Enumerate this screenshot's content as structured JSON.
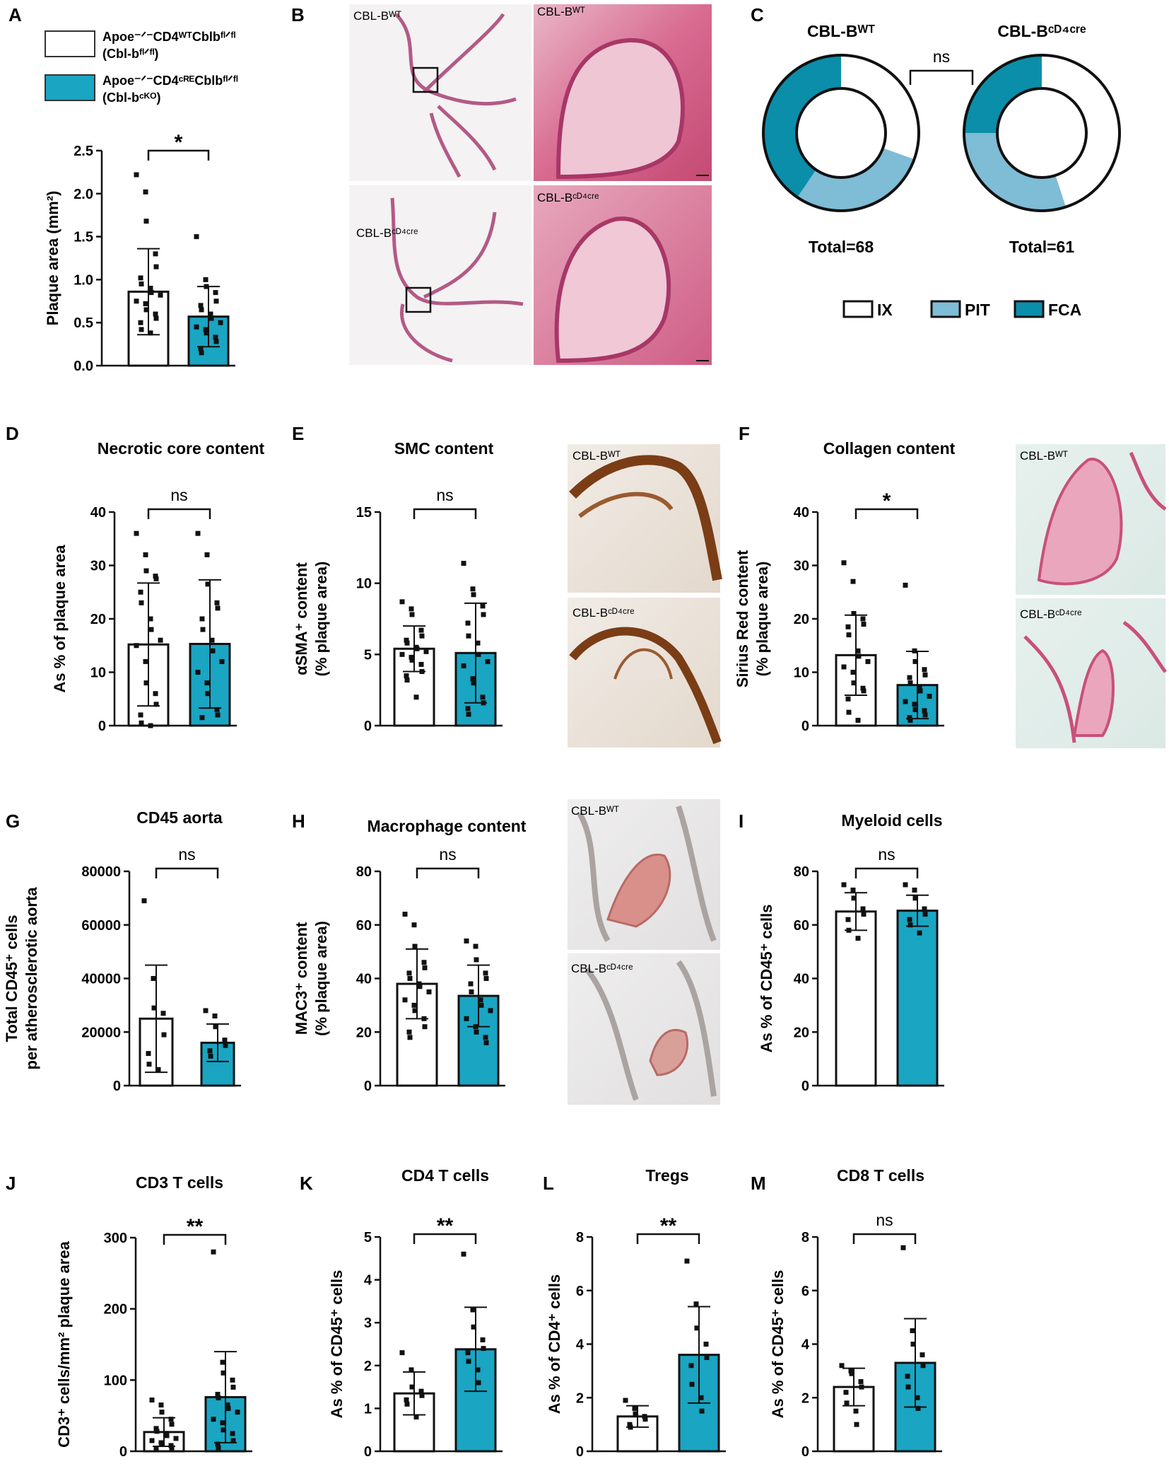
{
  "colors": {
    "wt_fill": "#ffffff",
    "ko_fill": "#1aa5c3",
    "pit": "#7fbcd5",
    "fca": "#0b8eaa",
    "ix": "#ffffff",
    "ink": "#111111"
  },
  "legend": {
    "wt_line1": "Apoe⁻ᐟ⁻CD4ᵂᵀCblbᶠˡᐟᶠˡ",
    "wt_line2": "(Cbl-bᶠˡᐟᶠˡ)",
    "ko_line1": "Apoe⁻ᐟ⁻CD4ᶜᴿᴱCblbᶠˡᐟᶠˡ",
    "ko_line2": "(Cbl-bᶜᴷᴼ)"
  },
  "images": {
    "b_wt": "CBL-Bᵂᵀ",
    "b_cre": "CBL-Bᶜᴰ⁴ᶜʳᵉ"
  },
  "chart_data": [
    {
      "id": "A",
      "type": "bar",
      "panel_label": "A",
      "title": "",
      "ylabel": "Plaque area (mm²)",
      "ylim": [
        0,
        2.5
      ],
      "yticks": [
        "0.0",
        "0.5",
        "1.0",
        "1.5",
        "2.0",
        "2.5"
      ],
      "ytick_values": [
        0,
        0.5,
        1,
        1.5,
        2,
        2.5
      ],
      "categories": [
        "Cbl-bfl/fl",
        "Cbl-bcKO"
      ],
      "values": [
        0.86,
        0.57
      ],
      "sd": [
        0.5,
        0.35
      ],
      "significance": "*",
      "points": [
        [
          2.22,
          2.02,
          1.68,
          1.3,
          1.15,
          1.02,
          0.95,
          0.9,
          0.85,
          0.82,
          0.75,
          0.72,
          0.65,
          0.6,
          0.55,
          0.5,
          0.42,
          0.38
        ],
        [
          1.5,
          1.0,
          0.92,
          0.85,
          0.75,
          0.7,
          0.65,
          0.6,
          0.55,
          0.5,
          0.45,
          0.42,
          0.38,
          0.33,
          0.28,
          0.2,
          0.15
        ]
      ]
    },
    {
      "id": "D",
      "type": "bar",
      "panel_label": "D",
      "title": "Necrotic core content",
      "ylabel": "As % of plaque area",
      "ylim": [
        0,
        40
      ],
      "yticks": [
        "0",
        "10",
        "20",
        "30",
        "40"
      ],
      "ytick_values": [
        0,
        10,
        20,
        30,
        40
      ],
      "categories": [
        "Cbl-bfl/fl",
        "Cbl-bcKO"
      ],
      "values": [
        15.2,
        15.3
      ],
      "sd": [
        11.5,
        12.0
      ],
      "significance": "ns",
      "points": [
        [
          36,
          32,
          29,
          28,
          27.5,
          25,
          23,
          20,
          18,
          16,
          15,
          12,
          8,
          6,
          4,
          2,
          0.5,
          0
        ],
        [
          36,
          32,
          26.5,
          23,
          22,
          20,
          18,
          16,
          14,
          12,
          10,
          8,
          6,
          3,
          2,
          1.5
        ]
      ]
    },
    {
      "id": "E",
      "type": "bar",
      "panel_label": "E",
      "title": "SMC content",
      "ylabel": "αSMA⁺ content",
      "ylabel2": "(% plaque area)",
      "ylim": [
        0,
        15
      ],
      "yticks": [
        "0",
        "5",
        "10",
        "15"
      ],
      "ytick_values": [
        0,
        5,
        10,
        15
      ],
      "categories": [
        "Cbl-bfl/fl",
        "Cbl-bcKO"
      ],
      "values": [
        5.4,
        5.1
      ],
      "sd": [
        1.6,
        3.5
      ],
      "significance": "ns",
      "points": [
        [
          8.7,
          8.2,
          7.8,
          6.7,
          6.3,
          6.0,
          5.8,
          5.5,
          5.4,
          5.2,
          5.0,
          4.8,
          4.6,
          4.3,
          3.8,
          3.5,
          3.2,
          2.0
        ],
        [
          11.4,
          9.6,
          9.2,
          8.4,
          7.8,
          7.2,
          6.3,
          5.8,
          5.0,
          4.5,
          4.2,
          3.3,
          3.0,
          2.0,
          1.6,
          1.2,
          0.8
        ]
      ]
    },
    {
      "id": "F",
      "type": "bar",
      "panel_label": "F",
      "title": "Collagen content",
      "ylabel": "Sirius Red content",
      "ylabel2": "(% plaque area)",
      "ylim": [
        0,
        40
      ],
      "yticks": [
        "0",
        "10",
        "20",
        "30",
        "40"
      ],
      "ytick_values": [
        0,
        10,
        20,
        30,
        40
      ],
      "categories": [
        "Cbl-bfl/fl",
        "Cbl-bcKO"
      ],
      "values": [
        13.2,
        7.6
      ],
      "sd": [
        7.5,
        6.3
      ],
      "significance": "*",
      "points": [
        [
          30.5,
          27,
          21,
          20,
          19,
          18.5,
          17,
          14,
          13,
          12,
          11,
          10,
          8,
          7,
          6.5,
          5,
          2.5,
          1
        ],
        [
          26.3,
          14,
          12,
          10.5,
          9.5,
          9,
          8,
          7,
          6.5,
          5.5,
          4.5,
          4,
          3,
          2.8,
          2,
          1.5,
          1
        ]
      ]
    },
    {
      "id": "G",
      "type": "bar",
      "panel_label": "G",
      "title": "CD45 aorta",
      "ylabel": "Total CD45⁺ cells",
      "ylabel2": "per atherosclerotic aorta",
      "ylim": [
        0,
        80000
      ],
      "yticks": [
        "0",
        "20000",
        "40000",
        "60000",
        "80000"
      ],
      "ytick_values": [
        0,
        20000,
        40000,
        60000,
        80000
      ],
      "categories": [
        "Cbl-bfl/fl",
        "Cbl-bcKO"
      ],
      "values": [
        25000,
        16000
      ],
      "sd": [
        20000,
        7000
      ],
      "significance": "ns",
      "points": [
        [
          69000,
          40000,
          29000,
          27000,
          19000,
          12000,
          8000,
          6000
        ],
        [
          28000,
          26000,
          22000,
          17000,
          15000,
          13000,
          11000
        ]
      ]
    },
    {
      "id": "H",
      "type": "bar",
      "panel_label": "H",
      "title": "Macrophage content",
      "ylabel": "MAC3⁺ content",
      "ylabel2": "(% plaque area)",
      "ylim": [
        0,
        80
      ],
      "yticks": [
        "0",
        "20",
        "40",
        "60",
        "80"
      ],
      "ytick_values": [
        0,
        20,
        40,
        60,
        80
      ],
      "categories": [
        "Cbl-bfl/fl",
        "Cbl-bcKO"
      ],
      "values": [
        38,
        33.5
      ],
      "sd": [
        13,
        11.5
      ],
      "significance": "ns",
      "points": [
        [
          64,
          60,
          52,
          46,
          44,
          42,
          40,
          38,
          37,
          35,
          32,
          30,
          28,
          25,
          22,
          20,
          18
        ],
        [
          54,
          52,
          47,
          42,
          40,
          38,
          35,
          32,
          30,
          28,
          25,
          22,
          20,
          18,
          16
        ]
      ]
    },
    {
      "id": "I",
      "type": "bar",
      "panel_label": "I",
      "title": "Myeloid cells",
      "ylabel": "As % of CD45⁺ cells",
      "ylim": [
        0,
        80
      ],
      "yticks": [
        "0",
        "20",
        "40",
        "60",
        "80"
      ],
      "ytick_values": [
        0,
        20,
        40,
        60,
        80
      ],
      "categories": [
        "Cbl-bfl/fl",
        "Cbl-bcKO"
      ],
      "values": [
        65,
        65.3
      ],
      "sd": [
        7,
        5.8
      ],
      "significance": "ns",
      "points": [
        [
          75,
          73,
          70,
          66,
          64,
          62,
          58,
          55
        ],
        [
          75,
          73,
          70,
          66,
          64,
          62,
          60,
          57
        ]
      ]
    },
    {
      "id": "J",
      "type": "bar",
      "panel_label": "J",
      "title": "CD3 T cells",
      "ylabel": "CD3⁺ cells/mm² plaque area",
      "ylim": [
        0,
        300
      ],
      "yticks": [
        "0",
        "100",
        "200",
        "300"
      ],
      "ytick_values": [
        0,
        100,
        200,
        300
      ],
      "categories": [
        "Cbl-bfl/fl",
        "Cbl-bcKO"
      ],
      "values": [
        27,
        76
      ],
      "sd": [
        20,
        64
      ],
      "significance": "**",
      "points": [
        [
          72,
          65,
          55,
          45,
          38,
          32,
          28,
          25,
          22,
          18,
          15,
          12,
          10,
          8,
          5,
          3
        ],
        [
          280,
          125,
          110,
          100,
          90,
          80,
          75,
          65,
          60,
          55,
          45,
          40,
          30,
          25,
          15,
          10,
          5
        ]
      ]
    },
    {
      "id": "K",
      "type": "bar",
      "panel_label": "K",
      "title": "CD4 T cells",
      "ylabel": "As % of CD45⁺ cells",
      "ylim": [
        0,
        5
      ],
      "yticks": [
        "0",
        "1",
        "2",
        "3",
        "4",
        "5"
      ],
      "ytick_values": [
        0,
        1,
        2,
        3,
        4,
        5
      ],
      "categories": [
        "Cbl-bfl/fl",
        "Cbl-bcKO"
      ],
      "values": [
        1.35,
        2.38
      ],
      "sd": [
        0.5,
        0.98
      ],
      "significance": "**",
      "points": [
        [
          2.3,
          1.9,
          1.5,
          1.4,
          1.3,
          1.2,
          1.1,
          0.8
        ],
        [
          4.6,
          3.3,
          2.9,
          2.6,
          2.4,
          2.3,
          2.1,
          1.9,
          1.6
        ]
      ]
    },
    {
      "id": "L",
      "type": "bar",
      "panel_label": "L",
      "title": "Tregs",
      "ylabel": "As % of CD4⁺ cells",
      "ylim": [
        0,
        8
      ],
      "yticks": [
        "0",
        "2",
        "4",
        "6",
        "8"
      ],
      "ytick_values": [
        0,
        2,
        4,
        6,
        8
      ],
      "categories": [
        "Cbl-bfl/fl",
        "Cbl-bcKO"
      ],
      "values": [
        1.3,
        3.6
      ],
      "sd": [
        0.4,
        1.8
      ],
      "significance": "**",
      "points": [
        [
          1.9,
          1.6,
          1.4,
          1.3,
          1.2,
          1.0,
          0.9
        ],
        [
          7.1,
          5.5,
          4.6,
          4.0,
          3.5,
          3.2,
          2.5,
          2.0,
          1.5
        ]
      ]
    },
    {
      "id": "M",
      "type": "bar",
      "panel_label": "M",
      "title": "CD8 T cells",
      "ylabel": "As % of CD45⁺ cells",
      "ylim": [
        0,
        8
      ],
      "yticks": [
        "0",
        "2",
        "4",
        "6",
        "8"
      ],
      "ytick_values": [
        0,
        2,
        4,
        6,
        8
      ],
      "categories": [
        "Cbl-bfl/fl",
        "Cbl-bcKO"
      ],
      "values": [
        2.4,
        3.3
      ],
      "sd": [
        0.7,
        1.65
      ],
      "significance": "ns",
      "points": [
        [
          3.2,
          3.0,
          2.9,
          2.6,
          2.4,
          2.2,
          1.8,
          1.5,
          1.0
        ],
        [
          7.6,
          4.5,
          4.0,
          3.6,
          3.2,
          2.8,
          2.4,
          2.0,
          1.6
        ]
      ]
    },
    {
      "id": "C",
      "type": "pie",
      "panel_label": "C",
      "significance": "ns",
      "legend": [
        "IX",
        "PIT",
        "FCA"
      ],
      "donuts": [
        {
          "title": "CBL-Bᵂᵀ",
          "total_label": "Total=68",
          "slices": [
            {
              "name": "IX",
              "value": 0.305
            },
            {
              "name": "PIT",
              "value": 0.29
            },
            {
              "name": "FCA",
              "value": 0.405
            }
          ]
        },
        {
          "title": "CBL-Bᶜᴰ⁴ᶜʳᵉ",
          "total_label": "Total=61",
          "slices": [
            {
              "name": "IX",
              "value": 0.45
            },
            {
              "name": "PIT",
              "value": 0.3
            },
            {
              "name": "FCA",
              "value": 0.25
            }
          ]
        }
      ]
    }
  ]
}
